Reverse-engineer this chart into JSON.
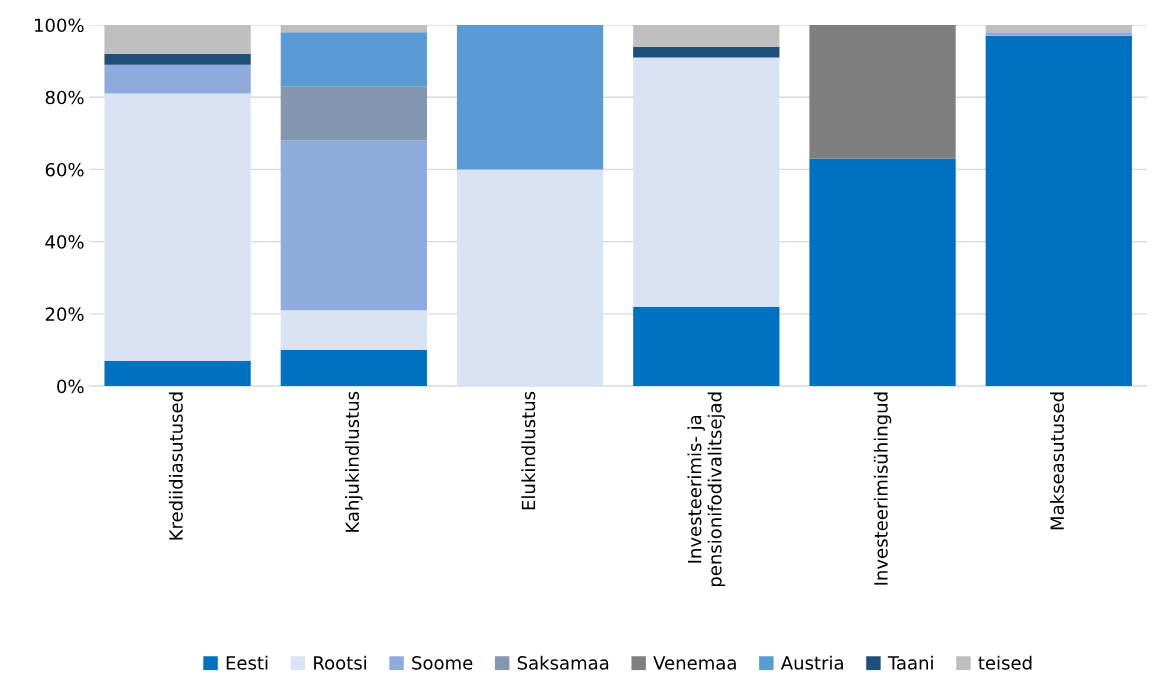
{
  "chart_data": {
    "type": "bar",
    "stacked": true,
    "categories": [
      "Krediidiasutused",
      "Kahjukindlustus",
      "Elukindlustus",
      "Investeerimis- ja\npensionifodivalitsejad",
      "Investeerimisühingud",
      "Makseasutused"
    ],
    "series": [
      {
        "name": "Eesti",
        "color": "#0070c0",
        "values": [
          7,
          10,
          0,
          22,
          63,
          97
        ]
      },
      {
        "name": "Rootsi",
        "color": "#dae3f3",
        "values": [
          74,
          11,
          60,
          69,
          0,
          0
        ]
      },
      {
        "name": "Soome",
        "color": "#8faadc",
        "values": [
          8,
          47,
          0,
          0,
          0,
          1
        ]
      },
      {
        "name": "Saksamaa",
        "color": "#8497b0",
        "values": [
          0,
          15,
          0,
          0,
          0,
          0
        ]
      },
      {
        "name": "Venemaa",
        "color": "#7f7f7f",
        "values": [
          0,
          0,
          0,
          0,
          37,
          0
        ]
      },
      {
        "name": "Austria",
        "color": "#5b9bd5",
        "values": [
          0,
          15,
          40,
          0,
          0,
          0
        ]
      },
      {
        "name": "Taani",
        "color": "#1f4e79",
        "values": [
          3,
          0,
          0,
          3,
          0,
          0
        ]
      },
      {
        "name": "teised",
        "color": "#bfbfbf",
        "values": [
          8,
          2,
          0,
          6,
          0,
          2
        ]
      }
    ],
    "ylim": [
      0,
      100
    ],
    "yticks": [
      {
        "value": 0,
        "label": "0%"
      },
      {
        "value": 20,
        "label": "20%"
      },
      {
        "value": 40,
        "label": "40%"
      },
      {
        "value": 60,
        "label": "60%"
      },
      {
        "value": 80,
        "label": "80%"
      },
      {
        "value": 100,
        "label": "100%"
      }
    ],
    "grid": "y",
    "legend": "bottom"
  }
}
